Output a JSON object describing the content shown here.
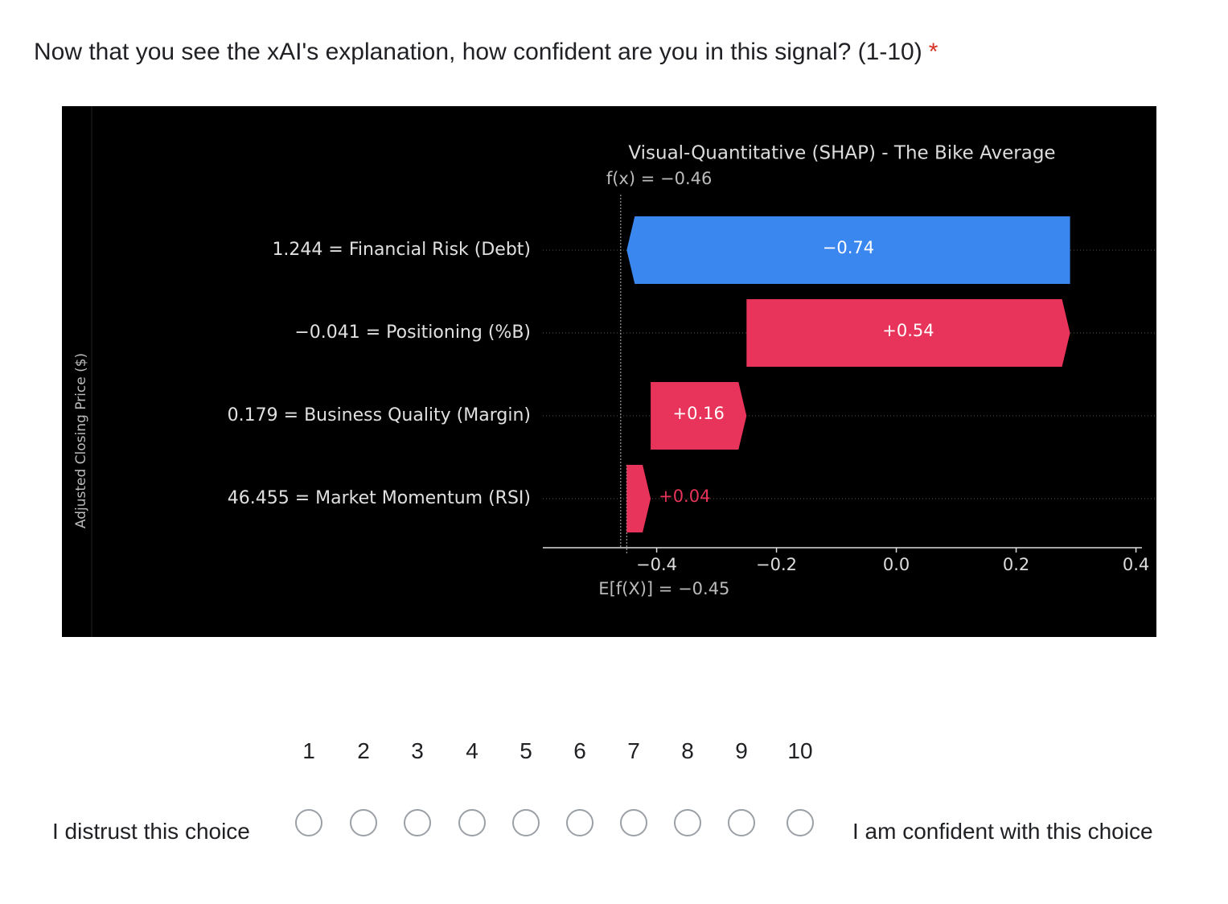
{
  "question": {
    "text": "Now that you see the xAI's explanation, how confident are you in this signal? (1-10)",
    "required_mark": "*"
  },
  "chart_data": {
    "type": "waterfall",
    "title": "Visual-Quantitative (SHAP) - The Bike Average",
    "y_axis_label": "Adjusted Closing Price ($)",
    "categories": [
      "1.244 = Financial Risk (Debt)",
      "−0.041 = Positioning (%B)",
      "0.179 = Business Quality (Margin)",
      "46.455 = Market Momentum (RSI)"
    ],
    "values": [
      -0.74,
      0.54,
      0.16,
      0.04
    ],
    "value_labels": [
      "−0.74",
      "+0.54",
      "+0.16",
      "+0.04"
    ],
    "base": -0.45,
    "base_label": "E[f(X)] = −0.45",
    "fx": -0.46,
    "fx_label": "f(x) = −0.46",
    "positive_color": "#e8345a",
    "negative_color": "#3b87f0",
    "xlim": [
      -0.59,
      0.41
    ],
    "xticks": [
      {
        "value": -0.4,
        "label": "−0.4"
      },
      {
        "value": -0.2,
        "label": "−0.2"
      },
      {
        "value": 0,
        "label": "0.0"
      },
      0.2,
      0.4
    ]
  },
  "scale": {
    "options": [
      "1",
      "2",
      "3",
      "4",
      "5",
      "6",
      "7",
      "8",
      "9",
      "10"
    ],
    "low_label": "I distrust this choice",
    "high_label": "I am confident with this choice"
  }
}
